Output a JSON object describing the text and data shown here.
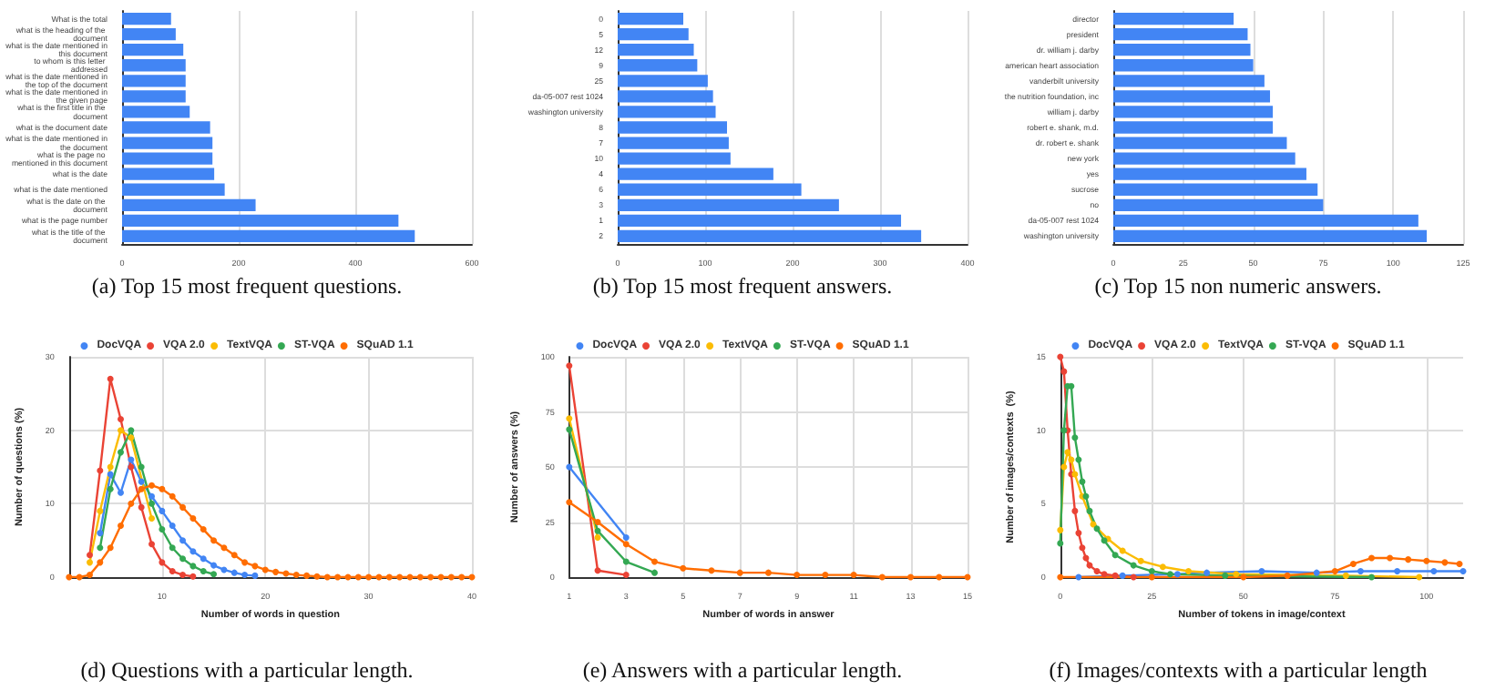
{
  "chart_data": [
    {
      "type": "bar",
      "orientation": "horizontal",
      "title": "(a) Top 15 most frequent questions.",
      "categories": [
        "What is the total",
        "what is the heading of the document",
        "what is the date mentioned in this document",
        "to whom is this letter addressed",
        "what is the date mentioned in the top of the document",
        "what is the date mentioned in the given page",
        "what is the first title in the document",
        "what is the document date",
        "what is the date mentioned in the document",
        "what is the page no mentioned in this document",
        "what is the date",
        "what is the date mentioned",
        "what is the date on the document",
        "what is the page number",
        "what is the title of the document"
      ],
      "values": [
        84,
        92,
        105,
        109,
        109,
        109,
        116,
        151,
        155,
        155,
        158,
        176,
        229,
        474,
        502
      ],
      "color": "#4285f4",
      "xlim": [
        0,
        600
      ],
      "xticks": [
        0,
        200,
        400,
        600
      ],
      "grid": "x"
    },
    {
      "type": "bar",
      "orientation": "horizontal",
      "title": "(b) Top 15 most frequent answers.",
      "categories": [
        "0",
        "5",
        "12",
        "9",
        "25",
        "da-05-007 rest 1024",
        "washington university",
        "8",
        "7",
        "10",
        "4",
        "6",
        "3",
        "1",
        "2"
      ],
      "values": [
        75,
        81,
        87,
        91,
        103,
        109,
        112,
        125,
        127,
        129,
        178,
        210,
        253,
        324,
        347
      ],
      "color": "#4285f4",
      "xlim": [
        0,
        400
      ],
      "xticks": [
        0,
        100,
        200,
        300,
        400
      ],
      "grid": "x"
    },
    {
      "type": "bar",
      "orientation": "horizontal",
      "title": "(c) Top 15 non numeric answers.",
      "categories": [
        "director",
        "president",
        "dr. william j. darby",
        "american heart association",
        "vanderbilt university",
        "the nutrition foundation, inc",
        "william j. darby",
        "robert e. shank, m.d.",
        "dr. robert e. shank",
        "new york",
        "yes",
        "sucrose",
        "no",
        "da-05-007 rest 1024",
        "washington university"
      ],
      "values": [
        43,
        48,
        49,
        50,
        54,
        56,
        57,
        57,
        62,
        65,
        69,
        73,
        75,
        109,
        112
      ],
      "color": "#4285f4",
      "xlim": [
        0,
        125
      ],
      "xticks": [
        0,
        25,
        50,
        75,
        100,
        125
      ],
      "grid": "x"
    },
    {
      "type": "line",
      "title": "(d) Questions with a particular length.",
      "xlabel": "Number of words in question",
      "ylabel": "Number of questions (%)",
      "legend": "top",
      "marker": "circle",
      "grid": true,
      "xlim": [
        1,
        40
      ],
      "xticks": [
        10,
        20,
        30,
        40
      ],
      "ylim": [
        0,
        30
      ],
      "yticks": [
        0,
        10,
        20,
        30
      ],
      "x": [
        1,
        2,
        3,
        4,
        5,
        6,
        7,
        8,
        9,
        10,
        11,
        12,
        13,
        14,
        15,
        16,
        17,
        18,
        19,
        20,
        21,
        22,
        23,
        24,
        25,
        26,
        27,
        28,
        29,
        30,
        31,
        32,
        33,
        34,
        35,
        36,
        37,
        38,
        39,
        40
      ],
      "series": [
        {
          "name": "DocVQA",
          "color": "#4285f4",
          "values": [
            null,
            null,
            null,
            6,
            14,
            11.5,
            16,
            13,
            11,
            9,
            7,
            5,
            3.5,
            2.5,
            1.6,
            1,
            0.6,
            0.3,
            0.2,
            null,
            null,
            null,
            null,
            null,
            null,
            null,
            null,
            null,
            null,
            null,
            null,
            null,
            null,
            null,
            null,
            null,
            null,
            null,
            null,
            null
          ]
        },
        {
          "name": "VQA 2.0",
          "color": "#ea4335",
          "values": [
            null,
            null,
            3,
            14.5,
            27,
            21.5,
            15,
            9.5,
            4.5,
            2,
            0.8,
            0.3,
            0.1,
            null,
            null,
            null,
            null,
            null,
            null,
            null,
            null,
            null,
            null,
            null,
            null,
            null,
            null,
            null,
            null,
            null,
            null,
            null,
            null,
            null,
            null,
            null,
            null,
            null,
            null,
            null
          ]
        },
        {
          "name": "TextVQA",
          "color": "#fbbc04",
          "values": [
            null,
            null,
            2,
            9,
            15,
            20,
            19,
            null,
            8,
            null,
            null,
            null,
            null,
            null,
            null,
            null,
            null,
            null,
            null,
            null,
            null,
            null,
            null,
            null,
            null,
            null,
            null,
            null,
            null,
            null,
            null,
            null,
            null,
            null,
            null,
            null,
            null,
            null,
            null,
            null
          ]
        },
        {
          "name": "ST-VQA",
          "color": "#34a853",
          "values": [
            null,
            null,
            null,
            4,
            12,
            17,
            20,
            15,
            10,
            6.5,
            4,
            2.5,
            1.5,
            0.8,
            0.4,
            null,
            null,
            null,
            null,
            null,
            null,
            null,
            null,
            null,
            null,
            null,
            null,
            null,
            null,
            null,
            null,
            null,
            null,
            null,
            null,
            null,
            null,
            null,
            null,
            null
          ]
        },
        {
          "name": "SQuAD 1.1",
          "color": "#ff6d01",
          "values": [
            0,
            0,
            0.3,
            2,
            4,
            7,
            10,
            12,
            12.5,
            12,
            11,
            9.5,
            8,
            6.5,
            5,
            4,
            3,
            2,
            1.5,
            1,
            0.7,
            0.5,
            0.3,
            0.2,
            0.1,
            0,
            0,
            0,
            0,
            0,
            0,
            0,
            0,
            0,
            0,
            0,
            0,
            0,
            0,
            0
          ]
        }
      ]
    },
    {
      "type": "line",
      "title": "(e) Answers with a particular length.",
      "xlabel": "Number of words in answer",
      "ylabel": "Number of answers (%)",
      "legend": "top",
      "marker": "circle",
      "grid": true,
      "xlim": [
        1,
        15
      ],
      "xticks": [
        1,
        3,
        5,
        7,
        9,
        11,
        13,
        15
      ],
      "ylim": [
        0,
        100
      ],
      "yticks": [
        0,
        25,
        50,
        75,
        100
      ],
      "x": [
        1,
        2,
        3,
        4,
        5,
        6,
        7,
        8,
        9,
        10,
        11,
        12,
        13,
        14,
        15
      ],
      "series": [
        {
          "name": "DocVQA",
          "color": "#4285f4",
          "values": [
            50,
            null,
            18,
            null,
            null,
            null,
            null,
            null,
            null,
            null,
            null,
            null,
            null,
            null,
            null
          ]
        },
        {
          "name": "VQA 2.0",
          "color": "#ea4335",
          "values": [
            96,
            3,
            1,
            null,
            null,
            null,
            null,
            null,
            null,
            null,
            null,
            null,
            null,
            null,
            null
          ]
        },
        {
          "name": "TextVQA",
          "color": "#fbbc04",
          "values": [
            72,
            18,
            null,
            null,
            null,
            null,
            null,
            null,
            null,
            null,
            null,
            null,
            null,
            null,
            null
          ]
        },
        {
          "name": "ST-VQA",
          "color": "#34a853",
          "values": [
            67,
            21,
            7,
            2,
            null,
            null,
            null,
            null,
            null,
            null,
            null,
            null,
            null,
            null,
            null
          ]
        },
        {
          "name": "SQuAD 1.1",
          "color": "#ff6d01",
          "values": [
            34,
            25,
            15,
            7,
            4,
            3,
            2,
            2,
            1,
            1,
            1,
            0,
            0,
            0,
            0
          ]
        }
      ]
    },
    {
      "type": "line",
      "title": "(f) Images/contexts with a particular length",
      "xlabel": "Number of tokens in image/context",
      "ylabel": "Number of images/contexts  (%)",
      "legend": "top",
      "marker": "circle",
      "grid": true,
      "xlim": [
        0,
        110
      ],
      "xticks": [
        0,
        25,
        50,
        75,
        100
      ],
      "ylim": [
        0,
        15
      ],
      "yticks": [
        0,
        5,
        10,
        15
      ],
      "series": [
        {
          "name": "DocVQA",
          "color": "#4285f4",
          "x": [
            5,
            17,
            32,
            40,
            55,
            70,
            82,
            92,
            102,
            110
          ],
          "values": [
            0,
            0.1,
            0.2,
            0.3,
            0.4,
            0.3,
            0.4,
            0.4,
            0.4,
            0.4
          ]
        },
        {
          "name": "VQA 2.0",
          "color": "#ea4335",
          "x": [
            0,
            1,
            2,
            3,
            4,
            5,
            6,
            7,
            8,
            10,
            12,
            15,
            20
          ],
          "values": [
            15,
            14,
            10,
            7,
            4.5,
            3,
            2,
            1.3,
            0.8,
            0.4,
            0.2,
            0.1,
            0
          ]
        },
        {
          "name": "TextVQA",
          "color": "#fbbc04",
          "x": [
            0,
            1,
            2,
            3,
            4,
            6,
            9,
            13,
            17,
            22,
            28,
            35,
            48,
            78,
            98
          ],
          "values": [
            3.2,
            7.5,
            8.5,
            8,
            7,
            5.5,
            3.6,
            2.6,
            1.8,
            1.1,
            0.7,
            0.4,
            0.2,
            0.1,
            0
          ]
        },
        {
          "name": "ST-VQA",
          "color": "#34a853",
          "x": [
            0,
            1,
            2,
            3,
            4,
            5,
            6,
            7,
            8,
            10,
            12,
            15,
            20,
            25,
            30,
            45,
            85
          ],
          "values": [
            2.3,
            10,
            13,
            13,
            9.5,
            8,
            6.5,
            5.5,
            4.5,
            3.3,
            2.5,
            1.5,
            0.8,
            0.4,
            0.2,
            0.1,
            0
          ]
        },
        {
          "name": "SQuAD 1.1",
          "color": "#ff6d01",
          "x": [
            0,
            25,
            50,
            62,
            75,
            80,
            85,
            90,
            95,
            100,
            105,
            109
          ],
          "values": [
            0,
            0,
            0,
            0.1,
            0.4,
            0.9,
            1.3,
            1.3,
            1.2,
            1.1,
            1,
            0.9
          ]
        }
      ]
    }
  ]
}
